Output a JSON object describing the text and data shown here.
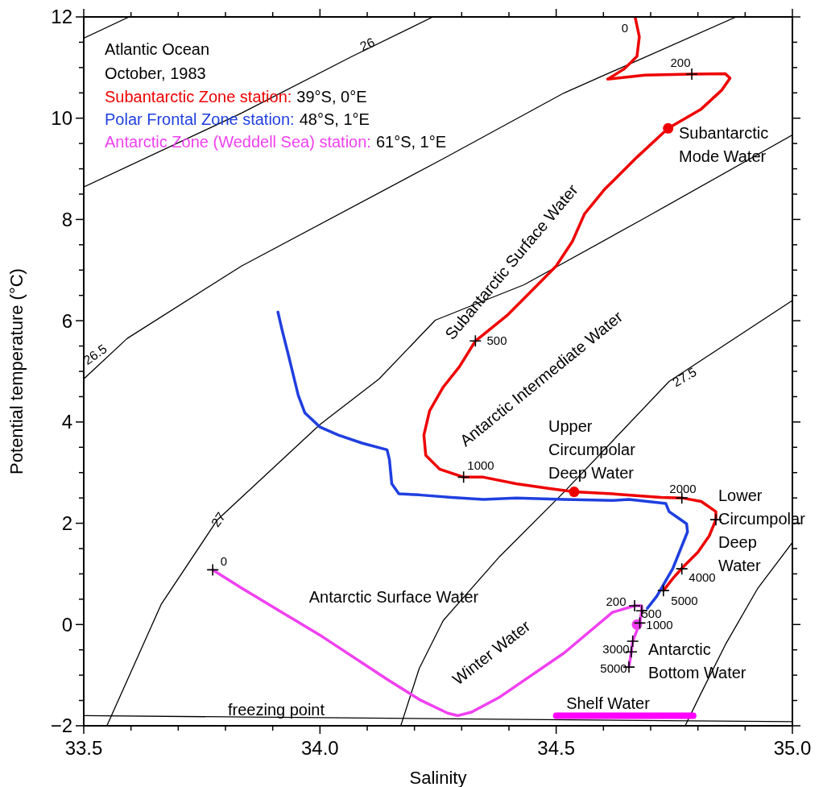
{
  "chart_data": {
    "type": "line",
    "title": "Atlantic Ocean",
    "subtitle": "October, 1983",
    "xlabel": "Salinity",
    "ylabel": "Potential temperature (°C)",
    "xlim": [
      33.5,
      35.0
    ],
    "ylim": [
      -2,
      12
    ],
    "xticks": [
      {
        "value": 33.5,
        "label": "33.5"
      },
      {
        "value": 33.6,
        "label": null
      },
      {
        "value": 33.7,
        "label": null
      },
      {
        "value": 33.8,
        "label": null
      },
      {
        "value": 33.9,
        "label": null
      },
      {
        "value": 34.0,
        "label": "34.0"
      },
      {
        "value": 34.1,
        "label": null
      },
      {
        "value": 34.2,
        "label": null
      },
      {
        "value": 34.3,
        "label": null
      },
      {
        "value": 34.4,
        "label": null
      },
      {
        "value": 34.5,
        "label": "34.5"
      },
      {
        "value": 34.6,
        "label": null
      },
      {
        "value": 34.7,
        "label": null
      },
      {
        "value": 34.8,
        "label": null
      },
      {
        "value": 34.9,
        "label": null
      },
      {
        "value": 35.0,
        "label": "35.0"
      }
    ],
    "yticks": [
      -2,
      {
        "value": -1.5,
        "label": null
      },
      {
        "value": -1,
        "label": null
      },
      {
        "value": -0.5,
        "label": null
      },
      0,
      {
        "value": 0.5,
        "label": null
      },
      {
        "value": 1,
        "label": null
      },
      {
        "value": 1.5,
        "label": null
      },
      2,
      {
        "value": 2.5,
        "label": null
      },
      {
        "value": 3,
        "label": null
      },
      {
        "value": 3.5,
        "label": null
      },
      4,
      {
        "value": 4.5,
        "label": null
      },
      {
        "value": 5,
        "label": null
      },
      {
        "value": 5.5,
        "label": null
      },
      6,
      {
        "value": 6.5,
        "label": null
      },
      {
        "value": 7,
        "label": null
      },
      {
        "value": 7.5,
        "label": null
      },
      8,
      {
        "value": 8.5,
        "label": null
      },
      {
        "value": 9,
        "label": null
      },
      {
        "value": 9.5,
        "label": null
      },
      10,
      {
        "value": 10.5,
        "label": null
      },
      {
        "value": 11,
        "label": null
      },
      {
        "value": 11.5,
        "label": null
      },
      12
    ],
    "grid": false,
    "legend": "top left",
    "series": [
      {
        "color": "#000000",
        "x": [
          33.5,
          33.596
        ],
        "values": [
          11.58,
          12.0
        ]
      },
      {
        "color": "#000000",
        "x": [
          33.5,
          33.834,
          34.068,
          34.239
        ],
        "values": [
          8.64,
          10.1,
          11.22,
          12.0
        ]
      },
      {
        "color": "#000000",
        "x": [
          33.5,
          33.592,
          33.834,
          34.261,
          34.517,
          34.881
        ],
        "values": [
          4.85,
          5.65,
          7.08,
          9.2,
          10.5,
          12.0
        ]
      },
      {
        "color": "#000000",
        "x": [
          33.549,
          33.664,
          33.783,
          34.0,
          34.125,
          34.244,
          34.432,
          34.688,
          35.0
        ],
        "values": [
          -2.0,
          0.4,
          2.07,
          3.95,
          4.85,
          6.01,
          6.71,
          8.03,
          9.67
        ]
      },
      {
        "color": "#000000",
        "x": [
          34.171,
          34.21,
          34.261,
          34.381,
          34.517,
          34.739,
          35.0
        ],
        "values": [
          -2.0,
          -0.87,
          0.08,
          1.35,
          2.62,
          4.8,
          6.4
        ]
      },
      {
        "color": "#000000",
        "x": [
          34.773,
          34.807,
          34.858,
          34.927,
          35.0
        ],
        "values": [
          -2.0,
          -1.35,
          -0.4,
          0.72,
          1.62
        ]
      },
      {
        "color": "#000000",
        "x": [
          33.5,
          35.0
        ],
        "values": [
          -1.8,
          -1.92
        ]
      },
      {
        "color": "#ff00ff",
        "x": [
          34.5,
          34.79
        ],
        "values": [
          -1.8,
          -1.8
        ]
      },
      {
        "name": "Subantarctic Zone station:",
        "color": "#ee0000",
        "x": [
          34.667,
          34.676,
          34.671,
          34.645,
          34.609,
          34.688,
          34.787,
          34.858,
          34.868,
          34.85,
          34.807,
          34.737,
          34.671,
          34.602,
          34.56,
          34.534,
          34.5,
          34.449,
          34.398,
          34.357,
          34.329,
          34.295,
          34.261,
          34.232,
          34.22,
          34.224,
          34.253,
          34.304,
          34.346,
          34.415,
          34.483,
          34.538,
          34.619,
          34.722,
          34.766,
          34.807,
          34.838,
          34.838,
          34.824,
          34.8,
          34.766,
          34.747,
          34.727
        ],
        "values": [
          12.0,
          11.61,
          11.22,
          10.98,
          10.77,
          10.85,
          10.87,
          10.88,
          10.79,
          10.55,
          10.18,
          9.8,
          9.23,
          8.59,
          8.11,
          7.56,
          7.08,
          6.6,
          6.12,
          5.81,
          5.6,
          5.09,
          4.69,
          4.22,
          3.74,
          3.34,
          3.07,
          2.91,
          2.91,
          2.78,
          2.69,
          2.62,
          2.58,
          2.51,
          2.5,
          2.43,
          2.23,
          2.07,
          1.75,
          1.43,
          1.11,
          0.91,
          0.67
        ]
      },
      {
        "name": "Polar Frontal Zone station:",
        "color": "#1f3fe0",
        "x": [
          33.911,
          33.92,
          33.933,
          33.954,
          33.968,
          34.0,
          34.039,
          34.09,
          34.142,
          34.147,
          34.152,
          34.167,
          34.21,
          34.278,
          34.346,
          34.415,
          34.517,
          34.619,
          34.654,
          34.732,
          34.739,
          34.759,
          34.776,
          34.778,
          34.747,
          34.713,
          34.693
        ],
        "values": [
          6.17,
          5.81,
          5.33,
          4.53,
          4.18,
          3.9,
          3.74,
          3.58,
          3.45,
          3.26,
          2.78,
          2.58,
          2.56,
          2.51,
          2.47,
          2.5,
          2.47,
          2.45,
          2.47,
          2.39,
          2.23,
          2.1,
          1.99,
          1.83,
          1.11,
          0.56,
          0.32
        ]
      },
      {
        "name": "Antarctic Zone (Weddell Sea) station:",
        "color": "#f040f0",
        "x": [
          33.773,
          33.834,
          34.005,
          34.142,
          34.21,
          34.27,
          34.292,
          34.321,
          34.381,
          34.517,
          34.619,
          34.666,
          34.681,
          34.681,
          34.677,
          34.662,
          34.659,
          34.654
        ],
        "values": [
          1.08,
          0.72,
          -0.24,
          -1.08,
          -1.48,
          -1.75,
          -1.8,
          -1.73,
          -1.43,
          -0.56,
          0.24,
          0.37,
          0.37,
          0.27,
          0.03,
          -0.33,
          -0.54,
          -0.84
        ]
      },
      {
        "type": "scatter",
        "marker": "circle",
        "color": "#ee0000",
        "x": [
          34.737,
          34.538
        ],
        "values": [
          9.8,
          2.62
        ]
      },
      {
        "type": "scatter",
        "marker": "circle",
        "color": "#f040f0",
        "x": [
          34.671
        ],
        "values": [
          0.0
        ]
      },
      {
        "type": "scatter",
        "marker": "cross",
        "color": "#000000",
        "x": [
          34.787,
          34.329,
          34.304,
          34.766,
          34.838,
          34.766,
          34.727,
          33.773,
          34.666,
          34.681,
          34.677,
          34.662,
          34.659,
          34.654
        ],
        "values": [
          10.87,
          5.6,
          2.91,
          2.5,
          2.07,
          1.1,
          0.67,
          1.08,
          0.37,
          0.27,
          0.03,
          -0.33,
          -0.54,
          -0.84
        ]
      }
    ],
    "annotations": [
      "39°S, 0°E",
      "48°S, 1°E",
      "61°S, 1°E",
      "Subantarctic\nMode Water",
      "Subantarctic Surface Water",
      "Antarctic Intermediate Water",
      "Upper\nCircumpolar\nDeep Water",
      "Lower\nCircumpolar\nDeep\nWater",
      "Antarctic Surface Water",
      "Winter Water",
      "Antarctic\nBottom Water",
      "Shelf Water",
      "freezing point",
      "26",
      "26.5",
      "27",
      "27.5",
      "0",
      "200",
      "500",
      "1000",
      "2000",
      "4000",
      "5000",
      "0",
      "200",
      "500",
      "1000",
      "3000",
      "5000"
    ]
  }
}
